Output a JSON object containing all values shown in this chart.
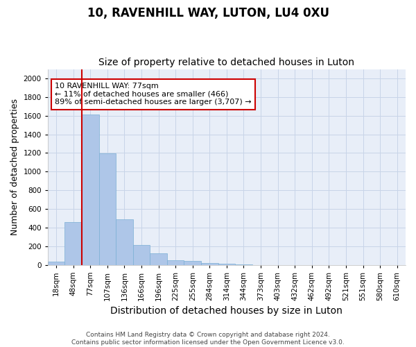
{
  "title": "10, RAVENHILL WAY, LUTON, LU4 0XU",
  "subtitle": "Size of property relative to detached houses in Luton",
  "xlabel": "Distribution of detached houses by size in Luton",
  "ylabel": "Number of detached properties",
  "footer_line1": "Contains HM Land Registry data © Crown copyright and database right 2024.",
  "footer_line2": "Contains public sector information licensed under the Open Government Licence v3.0.",
  "categories": [
    "18sqm",
    "48sqm",
    "77sqm",
    "107sqm",
    "136sqm",
    "166sqm",
    "196sqm",
    "225sqm",
    "255sqm",
    "284sqm",
    "314sqm",
    "344sqm",
    "373sqm",
    "403sqm",
    "432sqm",
    "462sqm",
    "492sqm",
    "521sqm",
    "551sqm",
    "580sqm",
    "610sqm"
  ],
  "values": [
    30,
    460,
    1610,
    1195,
    490,
    210,
    125,
    48,
    38,
    22,
    14,
    5,
    0,
    0,
    0,
    0,
    0,
    0,
    0,
    0,
    0
  ],
  "bar_color": "#aec6e8",
  "bar_edge_color": "#7aafd4",
  "highlight_index": 2,
  "highlight_color": "#cc0000",
  "annotation_box_text": "10 RAVENHILL WAY: 77sqm\n← 11% of detached houses are smaller (466)\n89% of semi-detached houses are larger (3,707) →",
  "annotation_box_color": "#cc0000",
  "annotation_box_bg": "white",
  "ylim": [
    0,
    2100
  ],
  "yticks": [
    0,
    200,
    400,
    600,
    800,
    1000,
    1200,
    1400,
    1600,
    1800,
    2000
  ],
  "grid_color": "#c8d4e8",
  "bg_color": "#e8eef8",
  "title_fontsize": 12,
  "subtitle_fontsize": 10,
  "ylabel_fontsize": 9,
  "xlabel_fontsize": 10,
  "tick_fontsize": 7.5,
  "footer_fontsize": 6.5,
  "annot_fontsize": 8
}
